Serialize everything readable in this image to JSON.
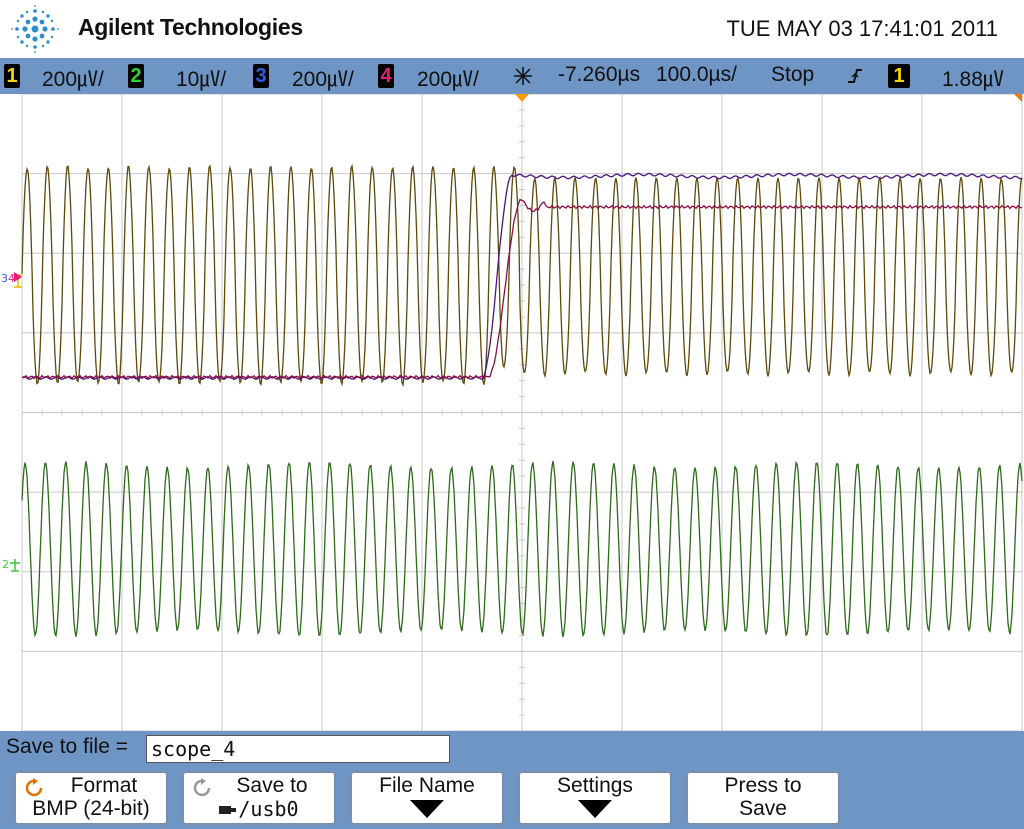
{
  "header": {
    "brand": "Agilent Technologies",
    "datetime": "TUE MAY 03 17:41:01 2011"
  },
  "status": {
    "ch1": {
      "num": "1",
      "scale": "200㎶/",
      "color": "#f2d20c"
    },
    "ch2": {
      "num": "2",
      "scale": "10㎶/",
      "color": "#33d133"
    },
    "ch3": {
      "num": "3",
      "scale": "200㎶/",
      "color": "#3a5be0"
    },
    "ch4": {
      "num": "4",
      "scale": "200㎶/",
      "color": "#e0207a"
    },
    "delay": "-7.260µs",
    "timebase": "100.0µs/",
    "run_state": "Stop",
    "trigger_icon": "rising-edge-icon",
    "trigger_source": "1",
    "trigger_level": "1.88㎶"
  },
  "waveforms": {
    "ch1_color": "#5c4a0c",
    "ch2_color": "#2e6a1a",
    "ch3_color": "#4a1580",
    "ch4_color": "#8a1040"
  },
  "markers": {
    "ch1_ground": "1",
    "ch2_ground": "2",
    "ch3_ground": "3",
    "ch4_ground": "4"
  },
  "save": {
    "label": "Save to file =",
    "filename": "scope_4"
  },
  "softkeys": [
    {
      "line1": "Format",
      "line2": "BMP (24-bit)",
      "icon": "cycle-icon"
    },
    {
      "line1": "Save to",
      "line2": "/usb0",
      "icon": "cycle-icon"
    },
    {
      "line1": "File Name",
      "line2": ""
    },
    {
      "line1": "Settings",
      "line2": ""
    },
    {
      "line1": "Press to",
      "line2": "Save"
    }
  ]
}
